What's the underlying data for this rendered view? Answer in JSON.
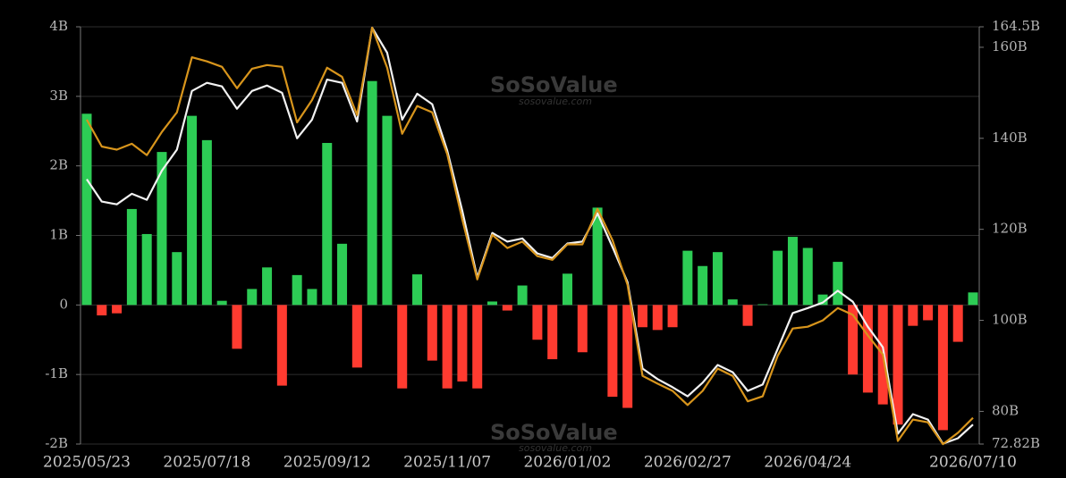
{
  "chart_data": {
    "type": "bar",
    "watermark": "SoSoValue",
    "watermark_sub": "sosovalue.com",
    "categories": [
      "2025/05/23",
      null,
      null,
      null,
      null,
      null,
      null,
      null,
      "2025/07/18",
      null,
      null,
      null,
      null,
      null,
      null,
      null,
      "2025/09/12",
      null,
      null,
      null,
      null,
      null,
      null,
      null,
      "2025/11/07",
      null,
      null,
      null,
      null,
      null,
      null,
      null,
      "2026/01/02",
      null,
      null,
      null,
      null,
      null,
      null,
      null,
      "2026/02/27",
      null,
      null,
      null,
      null,
      null,
      null,
      null,
      "2026/04/24",
      null,
      null,
      null,
      null,
      null,
      null,
      null,
      null,
      null,
      null,
      "2026/07/10"
    ],
    "series": [
      {
        "type": "bar",
        "positive_color": "#2dcc55",
        "negative_color": "#ff3b30",
        "values": [
          2.75,
          -0.15,
          -0.12,
          1.38,
          1.02,
          2.2,
          0.76,
          2.72,
          2.37,
          0.06,
          -0.63,
          0.23,
          0.54,
          -1.16,
          0.43,
          0.23,
          2.33,
          0.88,
          -0.9,
          3.22,
          2.72,
          -1.2,
          0.44,
          -0.8,
          -1.2,
          -1.1,
          -1.2,
          0.05,
          -0.08,
          0.28,
          -0.5,
          -0.78,
          0.45,
          -0.68,
          1.4,
          -1.32,
          -1.48,
          -0.32,
          -0.36,
          -0.32,
          0.78,
          0.56,
          0.76,
          0.08,
          -0.3,
          0.01,
          0.78,
          0.98,
          0.82,
          0.15,
          0.62,
          -1.0,
          -1.26,
          -1.43,
          -1.72,
          -0.3,
          -0.22,
          -1.8,
          -0.53,
          0.18
        ]
      },
      {
        "type": "line",
        "axis": "y2",
        "color": "#f2f2f2",
        "values": [
          131,
          126.1,
          125.5,
          127.8,
          126.5,
          132.9,
          137.5,
          150.4,
          152.2,
          151.4,
          146.5,
          150.4,
          151.6,
          150,
          140,
          144.1,
          152.9,
          152.2,
          143.7,
          164.3,
          158.8,
          144.1,
          149.8,
          147.5,
          137.3,
          124.1,
          109.4,
          119.2,
          117.3,
          118,
          114.7,
          113.7,
          116.9,
          117.3,
          123.5,
          116.1,
          108.4,
          89.4,
          87.1,
          85.3,
          83.3,
          86.3,
          90.2,
          88.6,
          84.5,
          85.9,
          93.7,
          101.6,
          102.7,
          103.9,
          106.5,
          104.1,
          98.6,
          94.1,
          75.1,
          79.4,
          78.2,
          72.9,
          74.1,
          77.1
        ]
      },
      {
        "type": "line",
        "axis": "y2",
        "color": "#d8951c",
        "values": [
          144.1,
          138.2,
          137.5,
          138.8,
          136.3,
          141.4,
          145.7,
          157.8,
          156.9,
          155.7,
          151,
          155.3,
          156.1,
          155.7,
          143.5,
          148.4,
          155.5,
          153.5,
          145.1,
          164.3,
          155.5,
          141,
          147.1,
          145.7,
          136.5,
          122.2,
          109,
          118.8,
          115.9,
          117.3,
          114.1,
          113.3,
          116.7,
          116.7,
          124.5,
          117.6,
          107.8,
          87.8,
          86.1,
          84.5,
          81.4,
          84.5,
          89.4,
          87.8,
          82.2,
          83.3,
          92.2,
          98.2,
          98.6,
          100,
          102.7,
          101.2,
          96.7,
          92.5,
          73.5,
          78.2,
          77.6,
          72.8,
          75.3,
          78.6
        ]
      }
    ],
    "ylim": [
      -2,
      4
    ],
    "yticks": [
      {
        "value": -2,
        "label": "-2B"
      },
      {
        "value": -1,
        "label": "-1B"
      },
      0,
      {
        "value": 1,
        "label": "1B"
      },
      {
        "value": 2,
        "label": "2B"
      },
      {
        "value": 3,
        "label": "3B"
      },
      {
        "value": 4,
        "label": "4B"
      }
    ],
    "y2lim": [
      72.82,
      164.5
    ],
    "y2ticks": [
      {
        "value": 72.82,
        "label": "72.82B"
      },
      {
        "value": 80,
        "label": "80B"
      },
      {
        "value": 100,
        "label": "100B"
      },
      {
        "value": 120,
        "label": "120B"
      },
      {
        "value": 140,
        "label": "140B"
      },
      {
        "value": 160,
        "label": "160B"
      },
      {
        "value": 164.5,
        "label": "164.5B"
      }
    ],
    "grid": true
  }
}
